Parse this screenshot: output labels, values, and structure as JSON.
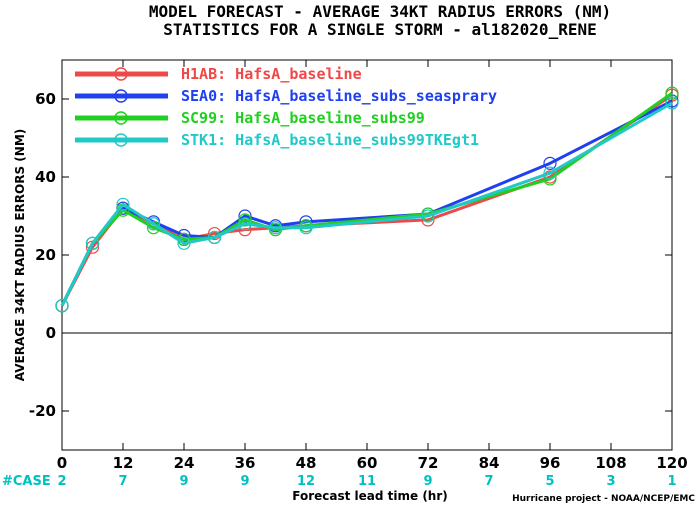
{
  "chart_data": {
    "type": "line",
    "title_line1": "MODEL FORECAST - AVERAGE 34KT RADIUS ERRORS (NM)",
    "title_line2": "STATISTICS FOR A SINGLE STORM - al182020_RENE",
    "ylabel": "AVERAGE 34KT RADIUS ERRORS (NM)",
    "xlabel": "Forecast lead time (hr)",
    "credit": "Hurricane project - NOAA/NCEP/EMC",
    "xlim": [
      0,
      120
    ],
    "ylim": [
      -30,
      70
    ],
    "x_ticks": [
      0,
      12,
      24,
      36,
      48,
      60,
      72,
      84,
      96,
      108,
      120
    ],
    "y_ticks": [
      -20,
      0,
      20,
      40,
      60
    ],
    "zero_line": true,
    "legend_position": "top-left",
    "cases_label": "#CASE",
    "cases_color": "#00c0c0",
    "cases": [
      2,
      7,
      9,
      9,
      12,
      11,
      9,
      7,
      5,
      3,
      1
    ],
    "series": [
      {
        "name": "H1AB: HafsA_baseline",
        "color": "#f04848",
        "x": [
          0,
          6,
          12,
          18,
          24,
          30,
          36,
          42,
          48,
          72,
          96,
          120
        ],
        "y": [
          7,
          22,
          32,
          28,
          24,
          25.5,
          26.5,
          27,
          27.5,
          29,
          40,
          61
        ]
      },
      {
        "name": "SEA0: HafsA_baseline_subs_seasprary",
        "color": "#2040f0",
        "x": [
          0,
          6,
          12,
          18,
          24,
          30,
          36,
          42,
          48,
          72,
          96,
          120
        ],
        "y": [
          7,
          23,
          32,
          28.5,
          25,
          24.5,
          30,
          27.5,
          28.5,
          30.5,
          43.5,
          59.5
        ]
      },
      {
        "name": "SC99: HafsA_baseline_subs99",
        "color": "#20d020",
        "x": [
          0,
          6,
          12,
          18,
          24,
          30,
          36,
          42,
          48,
          72,
          96,
          120
        ],
        "y": [
          7,
          23,
          31.5,
          27,
          24,
          24.5,
          29,
          26.5,
          27.5,
          30.5,
          39.5,
          61.5
        ]
      },
      {
        "name": "STK1: HafsA_baseline_subs99TKEgt1",
        "color": "#20c8c8",
        "x": [
          0,
          6,
          12,
          18,
          24,
          30,
          36,
          42,
          48,
          72,
          96,
          120
        ],
        "y": [
          7,
          23,
          33,
          28,
          23,
          24.5,
          28,
          27,
          27,
          30,
          41,
          59
        ]
      }
    ]
  }
}
